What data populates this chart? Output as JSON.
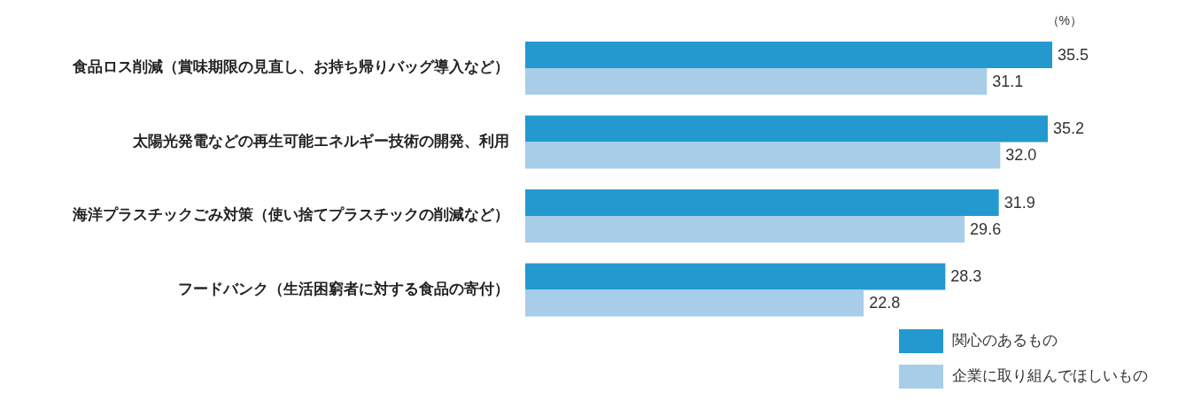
{
  "chart_data": {
    "type": "bar",
    "orientation": "horizontal",
    "categories": [
      "食品ロス削減（賞味期限の見直し、お持ち帰りバッグ導入など）",
      "太陽光発電などの再生可能エネルギー技術の開発、利用",
      "海洋プラスチックごみ対策（使い捨てプラスチックの削減など）",
      "フードバンク（生活困窮者に対する食品の寄付）"
    ],
    "series": [
      {
        "name": "関心のあるもの",
        "color": "#2399d0",
        "values": [
          35.5,
          35.2,
          31.9,
          28.3
        ],
        "value_labels": [
          "35.5",
          "35.2",
          "31.9",
          "28.3"
        ]
      },
      {
        "name": "企業に取り組んでほしいもの",
        "color": "#a8cde8",
        "values": [
          31.1,
          32.0,
          29.6,
          22.8
        ],
        "value_labels": [
          "31.1",
          "32.0",
          "29.6",
          "22.8"
        ]
      }
    ],
    "legend": "bottom right",
    "annotations": [
      "（%）"
    ]
  }
}
